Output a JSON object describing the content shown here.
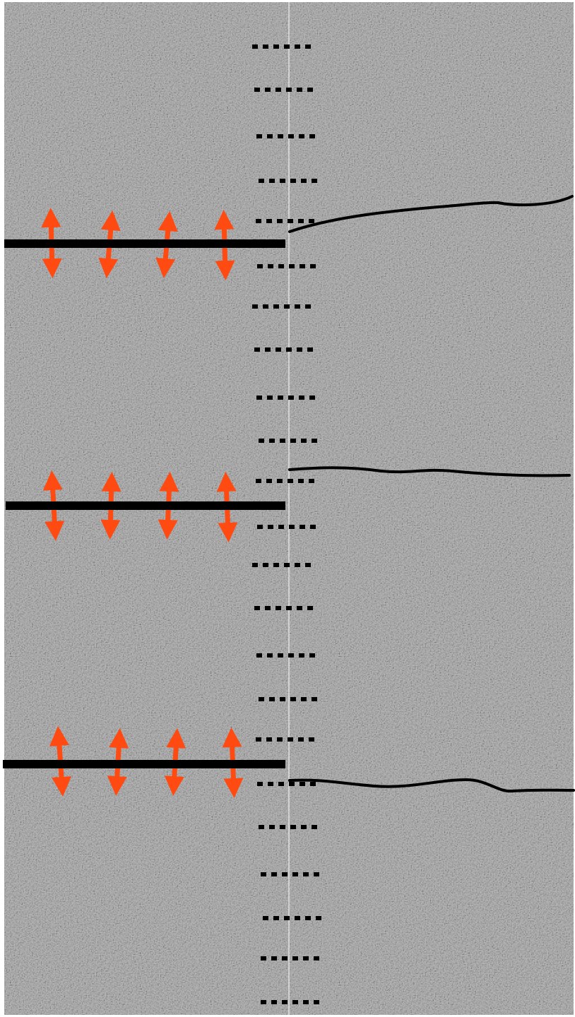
{
  "diagram": {
    "background": {
      "texture": "gray-noise",
      "colors": [
        "#9a9a9a",
        "#c9c9c9",
        "#6e6e6e"
      ]
    },
    "center_divider": {
      "color": "#f0f0f0"
    },
    "dotted_markers": {
      "count": 23,
      "dots_per_row": 6,
      "color": "#000000"
    },
    "rigid_bars": {
      "count": 3,
      "color": "#000000",
      "arrows_per_bar": 4,
      "arrow_color": "#ff4a12",
      "arrow_icon": "double-headed-vertical-arrow"
    },
    "flexible_lines": {
      "count": 3,
      "color": "#000000"
    }
  }
}
